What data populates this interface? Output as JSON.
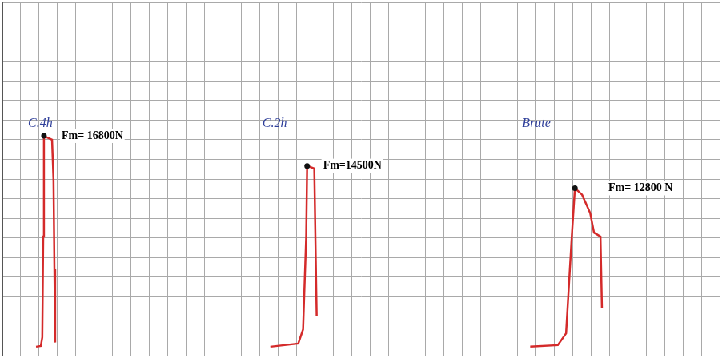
{
  "chart_data": {
    "type": "line",
    "grid": true,
    "tick_labels": false,
    "xlim": [
      0,
      39
    ],
    "xticks": [
      0,
      1,
      2,
      3,
      4,
      5,
      6,
      7,
      8,
      9,
      10,
      11,
      12,
      13,
      14,
      15,
      16,
      17,
      18,
      19,
      20,
      21,
      22,
      23,
      24,
      25,
      26,
      27,
      28,
      29,
      30,
      31,
      32,
      33,
      34,
      35,
      36,
      37,
      38,
      39
    ],
    "ylim": [
      0,
      27000
    ],
    "yticks": [
      0,
      1500,
      3000,
      4500,
      6000,
      7500,
      9000,
      10500,
      12000,
      13500,
      15000,
      16500,
      18000,
      19500,
      21000,
      22500,
      24000,
      25500,
      27000
    ],
    "annotations": [
      "Fm= 16800N",
      "Fm=14500N",
      "Fm= 12800 N"
    ],
    "series": [
      {
        "name": "C.4h",
        "color": "#d42a2a",
        "x": [
          1.83,
          2.09,
          2.17,
          2.22,
          2.26,
          2.39,
          2.7,
          2.78,
          2.83,
          2.87
        ],
        "values": [
          680,
          740,
          1400,
          9100,
          16800,
          16700,
          16500,
          13400,
          6600,
          1000
        ]
      },
      {
        "name": "C.2h",
        "color": "#d42a2a",
        "x": [
          14.57,
          16.09,
          16.35,
          16.52,
          16.57,
          16.96,
          17.04,
          17.09
        ],
        "values": [
          680,
          920,
          2000,
          9100,
          14500,
          14300,
          7300,
          3000
        ]
      },
      {
        "name": "Brute",
        "color": "#d42a2a",
        "x": [
          28.7,
          30.2,
          30.65,
          30.96,
          31.13,
          31.52,
          31.96,
          32.17,
          32.52,
          32.6
        ],
        "values": [
          680,
          800,
          1700,
          9100,
          12800,
          12300,
          10900,
          9400,
          9100,
          3600
        ]
      }
    ]
  }
}
